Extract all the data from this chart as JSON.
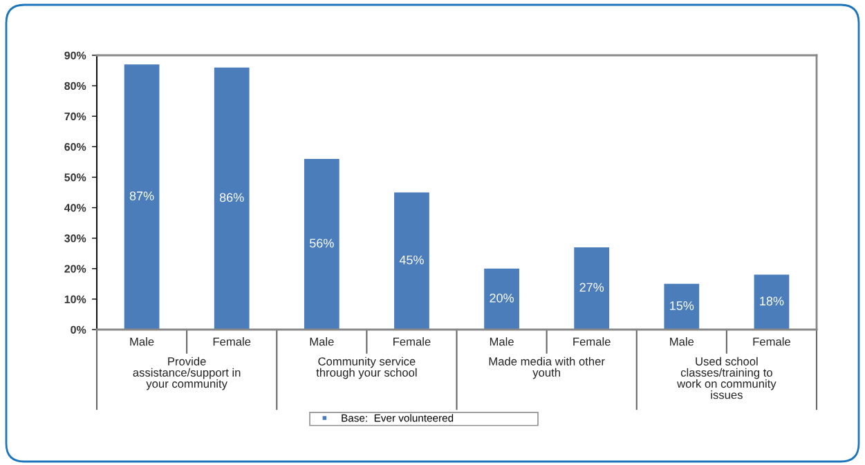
{
  "chart_data": {
    "type": "bar",
    "categories": [
      "Male",
      "Female",
      "Male",
      "Female",
      "Male",
      "Female",
      "Male",
      "Female"
    ],
    "series": [
      {
        "name": "Base:  Ever volunteered",
        "color": "#4a7dba",
        "values": [
          87,
          86,
          56,
          45,
          20,
          27,
          15,
          18
        ],
        "value_labels": [
          "87%",
          "86%",
          "56%",
          "45%",
          "20%",
          "27%",
          "15%",
          "18%"
        ]
      }
    ],
    "annotations": [
      "Provide\nassistance/support in\nyour community",
      "Community service\nthrough your school",
      "Made media with other\nyouth",
      "Used school\nclasses/training to\nwork on community\nissues"
    ],
    "ylim": [
      0,
      90
    ],
    "yticks": [
      {
        "value": 0,
        "label": "0%"
      },
      {
        "value": 10,
        "label": "10%"
      },
      {
        "value": 20,
        "label": "20%"
      },
      {
        "value": 30,
        "label": "30%"
      },
      {
        "value": 40,
        "label": "40%"
      },
      {
        "value": 50,
        "label": "50%"
      },
      {
        "value": 60,
        "label": "60%"
      },
      {
        "value": 70,
        "label": "70%"
      },
      {
        "value": 80,
        "label": "80%"
      },
      {
        "value": 90,
        "label": "90%"
      }
    ],
    "legend": "bottom"
  }
}
